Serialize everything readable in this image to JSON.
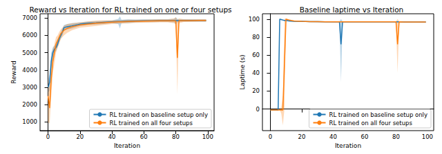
{
  "chart_data": [
    {
      "type": "line",
      "title": "Reward vs Iteration for RL trained on one or four setups",
      "x_label": "Iteration",
      "y_label": "Reward",
      "x": [
        0,
        1,
        2,
        3,
        4,
        5,
        6,
        7,
        8,
        9,
        10,
        12,
        15,
        20,
        25,
        30,
        35,
        40,
        44,
        45,
        46,
        50,
        55,
        60,
        65,
        70,
        75,
        79,
        80,
        81,
        82,
        85,
        90,
        95,
        99
      ],
      "xlim": [
        -5,
        104
      ],
      "xticks": [
        0,
        20,
        40,
        60,
        80,
        100
      ],
      "ylim": [
        500,
        7250
      ],
      "yticks": [
        1000,
        2000,
        3000,
        4000,
        5000,
        6000,
        7000
      ],
      "grid": false,
      "legend": "lower right",
      "series": [
        {
          "name": "RL trained on baseline setup only",
          "color": "#1f77b4",
          "values": [
            3000,
            3300,
            4500,
            5000,
            5200,
            5300,
            5500,
            5800,
            6000,
            6200,
            6450,
            6500,
            6550,
            6650,
            6700,
            6720,
            6750,
            6780,
            6800,
            6800,
            6800,
            6820,
            6830,
            6840,
            6840,
            6850,
            6850,
            6850,
            6850,
            6850,
            6850,
            6860,
            6860,
            6860,
            6860
          ],
          "lower": [
            2700,
            2800,
            4000,
            4700,
            5000,
            5100,
            5300,
            5600,
            5800,
            6000,
            6300,
            6350,
            6400,
            6550,
            6600,
            6620,
            6650,
            6700,
            6650,
            6400,
            6700,
            6700,
            6750,
            6760,
            6760,
            6770,
            6770,
            6750,
            6600,
            6750,
            6780,
            6790,
            6790,
            6790,
            6790
          ],
          "upper": [
            3300,
            3800,
            5000,
            5300,
            5400,
            5500,
            5700,
            6000,
            6200,
            6400,
            6600,
            6650,
            6700,
            6750,
            6800,
            6820,
            6850,
            6860,
            6950,
            7100,
            6900,
            6930,
            6910,
            6920,
            6920,
            6930,
            6930,
            6950,
            7050,
            6950,
            6920,
            6930,
            6930,
            6930,
            6930
          ]
        },
        {
          "name": "RL trained on all four setups",
          "color": "#ff7f0e",
          "values": [
            2500,
            1800,
            3500,
            4500,
            5000,
            5500,
            5700,
            5900,
            6100,
            6200,
            6300,
            6400,
            6500,
            6600,
            6650,
            6700,
            6730,
            6760,
            6780,
            6780,
            6780,
            6800,
            6810,
            6820,
            6830,
            6840,
            6840,
            6840,
            6830,
            4700,
            6840,
            6850,
            6850,
            6860,
            6860
          ],
          "lower": [
            1000,
            900,
            2500,
            3800,
            4400,
            5000,
            5300,
            5500,
            5800,
            5900,
            6000,
            6150,
            6300,
            6450,
            6500,
            6550,
            6600,
            6650,
            6680,
            6680,
            6680,
            6700,
            6720,
            6730,
            6740,
            6750,
            6750,
            6700,
            6650,
            2600,
            6700,
            6770,
            6780,
            6790,
            6790
          ],
          "upper": [
            3500,
            3000,
            4500,
            5200,
            5500,
            5900,
            6000,
            6200,
            6350,
            6450,
            6550,
            6650,
            6700,
            6750,
            6800,
            6850,
            6860,
            6870,
            6880,
            6880,
            6880,
            6900,
            6900,
            6910,
            6920,
            6930,
            6930,
            6980,
            7050,
            6900,
            6980,
            6930,
            6920,
            6930,
            6930
          ]
        }
      ]
    },
    {
      "type": "line",
      "title": "Baseline laptime vs Iteration",
      "x_label": "Iteration",
      "y_label": "Laptime (s)",
      "x": [
        0,
        1,
        2,
        3,
        4,
        5,
        6,
        7,
        8,
        9,
        10,
        12,
        15,
        20,
        25,
        30,
        35,
        40,
        44,
        45,
        46,
        50,
        55,
        60,
        65,
        70,
        75,
        79,
        80,
        81,
        82,
        85,
        90,
        95,
        99
      ],
      "xlim": [
        -5,
        104
      ],
      "xticks": [
        0,
        20,
        40,
        60,
        80,
        100
      ],
      "ylim": [
        -24,
        106
      ],
      "yticks": [
        0,
        20,
        40,
        60,
        80,
        100
      ],
      "grid": false,
      "legend": "lower right",
      "series": [
        {
          "name": "RL trained on baseline setup only",
          "color": "#1f77b4",
          "values": [
            -1,
            -1,
            -1,
            -1,
            -1,
            -1,
            100,
            99.5,
            99,
            98.5,
            98.5,
            98,
            97.5,
            97.5,
            97.3,
            97.2,
            97.1,
            97,
            97,
            72,
            97,
            97,
            97,
            97,
            97,
            97,
            97,
            97,
            97,
            97,
            97,
            96.9,
            96.9,
            96.8,
            96.8
          ],
          "lower": [
            -1,
            -1,
            -1,
            -1,
            -1,
            -1,
            99,
            99,
            98.5,
            98,
            98,
            97.5,
            97,
            97,
            96.8,
            96.7,
            96.6,
            96.5,
            96.5,
            30,
            96.5,
            96.5,
            96.5,
            96.5,
            96.5,
            96.5,
            96.5,
            96.5,
            96.5,
            96.5,
            96.5,
            96.4,
            96.4,
            96.3,
            96.3
          ],
          "upper": [
            -1,
            -1,
            -1,
            -1,
            -1,
            -1,
            101,
            100,
            99.5,
            99,
            99,
            98.5,
            98,
            98,
            97.8,
            97.7,
            97.6,
            97.5,
            97.5,
            100,
            97.5,
            97.5,
            97.5,
            97.5,
            97.5,
            97.5,
            97.5,
            97.5,
            97.5,
            97.5,
            97.5,
            97.4,
            97.4,
            97.3,
            97.3
          ]
        },
        {
          "name": "RL trained on all four setups",
          "color": "#ff7f0e",
          "values": [
            -1,
            -1,
            -1,
            -1,
            -1,
            -1,
            -1,
            -1,
            -1,
            50,
            100,
            99,
            98,
            97.5,
            97.3,
            97.2,
            97.1,
            97,
            97,
            97,
            97,
            97,
            97,
            97,
            97,
            97,
            97,
            97,
            97,
            72,
            97,
            96.9,
            96.9,
            96.8,
            96.8
          ],
          "lower": [
            -1,
            -1,
            -1,
            -1,
            -1,
            -1,
            -1,
            -5,
            -18,
            0,
            99,
            98.5,
            97.5,
            97,
            96.8,
            96.7,
            96.6,
            96.5,
            96.5,
            96.5,
            96.5,
            96.5,
            96.5,
            96.5,
            96.5,
            96.5,
            96.5,
            96.5,
            96.5,
            40,
            96.5,
            96.4,
            96.4,
            96.3,
            96.3
          ],
          "upper": [
            -1,
            -1,
            -1,
            -1,
            -1,
            -1,
            -1,
            3,
            15,
            100,
            101,
            99.5,
            98.5,
            98,
            97.8,
            97.7,
            97.6,
            97.5,
            97.5,
            97.5,
            97.5,
            97.5,
            97.5,
            97.5,
            97.5,
            97.5,
            97.5,
            97.5,
            97.5,
            100,
            97.5,
            97.4,
            97.4,
            97.3,
            97.3
          ]
        }
      ]
    }
  ]
}
